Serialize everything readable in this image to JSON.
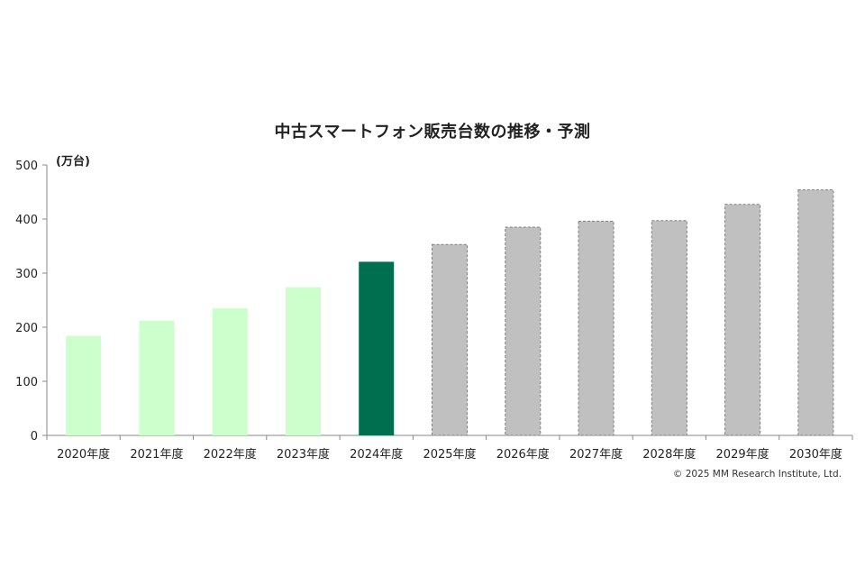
{
  "chart_data": {
    "type": "bar",
    "title": "中古スマートフォン販売台数の推移・予測",
    "unit_label": "(万台)",
    "categories": [
      "2020年度",
      "2021年度",
      "2022年度",
      "2023年度",
      "2024年度",
      "2025年度",
      "2026年度",
      "2027年度",
      "2028年度",
      "2029年度",
      "2030年度"
    ],
    "values": [
      184,
      212,
      235,
      274,
      321,
      353,
      385,
      396,
      397,
      427,
      454
    ],
    "bar_styles": [
      "actual",
      "actual",
      "actual",
      "actual",
      "actual-latest",
      "forecast",
      "forecast",
      "forecast",
      "forecast",
      "forecast",
      "forecast"
    ],
    "ylim": [
      0,
      500
    ],
    "yticks": [
      0,
      100,
      200,
      300,
      400,
      500
    ],
    "grid": false,
    "legend": "none",
    "colors": {
      "actual": "#ccffcc",
      "actual-latest": "#006f4f",
      "forecast": "#c0c0c0",
      "forecast_border": "#808080"
    }
  },
  "copyright": "© 2025 MM Research Institute, Ltd."
}
